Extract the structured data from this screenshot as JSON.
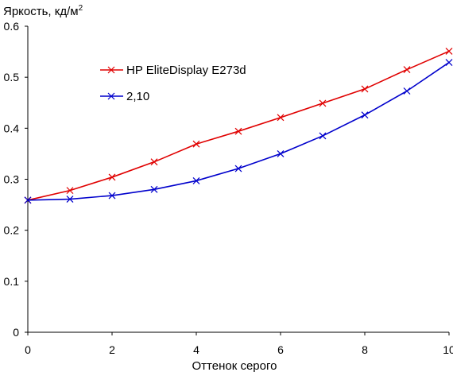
{
  "chart_data": {
    "type": "line",
    "title": "",
    "ylabel": "Яркость, кд/м",
    "ylabel_superscript": "2",
    "xlabel": "Оттенок серого",
    "xlim": [
      0,
      10
    ],
    "ylim": [
      0,
      0.6
    ],
    "x_ticks": [
      0,
      2,
      4,
      6,
      8,
      10
    ],
    "y_ticks": [
      0,
      0.1,
      0.2,
      0.3,
      0.4,
      0.5,
      0.6
    ],
    "y_tick_labels": [
      "0",
      "0.1",
      "0.2",
      "0.3",
      "0.4",
      "0.5",
      "0.6"
    ],
    "grid": false,
    "legend_position": "top-left",
    "x": [
      0,
      1,
      2,
      3,
      4,
      5,
      6,
      7,
      8,
      9,
      10
    ],
    "series": [
      {
        "name": "HP EliteDisplay E273d",
        "color": "#e00000",
        "values": [
          0.259,
          0.278,
          0.304,
          0.334,
          0.369,
          0.394,
          0.421,
          0.449,
          0.477,
          0.515,
          0.551
        ]
      },
      {
        "name": "2,10",
        "color": "#0000cc",
        "values": [
          0.259,
          0.261,
          0.268,
          0.28,
          0.297,
          0.321,
          0.35,
          0.385,
          0.426,
          0.473,
          0.529
        ]
      }
    ]
  }
}
